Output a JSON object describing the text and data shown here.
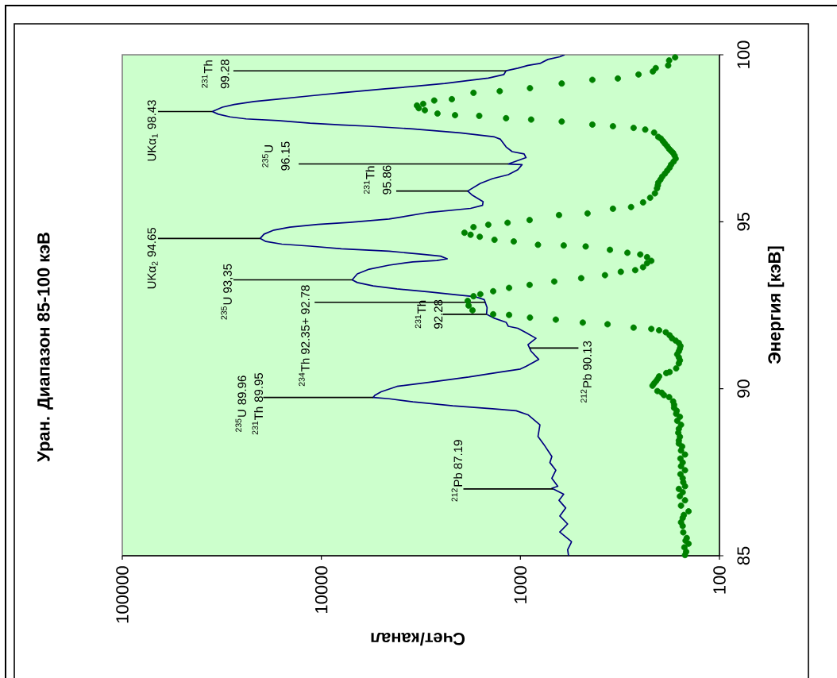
{
  "chart_data": {
    "type": "line",
    "title": "Уран. Диапазон 85-100 кэВ",
    "xlabel": "Счет/канал",
    "ylabel": "Энергия [кэВ]",
    "xlim": [
      100000,
      100
    ],
    "xticks": [
      100000,
      10000,
      1000,
      100
    ],
    "ylim": [
      85,
      100
    ],
    "yticks": [
      85,
      90,
      95,
      100
    ],
    "log": "x",
    "series": [
      {
        "color": "#000080",
        "x": [
          573,
          579,
          553,
          634,
          579,
          634,
          592,
          640,
          606,
          695,
          649,
          695,
          664,
          711,
          695,
          762,
          816,
          798,
          916,
          1050,
          1380,
          2190,
          3470,
          4570,
          5490,
          5370,
          5010,
          4170,
          2890,
          1820,
          1260,
          1000,
          937,
          809,
          883,
          916,
          835,
          937,
          1030,
          1150,
          1180,
          1350,
          1480,
          1470,
          1520,
          1700,
          2090,
          2890,
          4170,
          5490,
          6600,
          7000,
          6600,
          5750,
          4570,
          3470,
          2630,
          2330,
          2520,
          3160,
          4570,
          7930,
          11400,
          15800,
          19000,
          20300,
          19400,
          17300,
          14400,
          10400,
          7230,
          4570,
          2890,
          1780,
          1550,
          1540,
          1740,
          1840,
          1590,
          1380,
          1150,
          1030,
          981,
          1150,
          937,
          958,
          1100,
          1180,
          1260,
          1350,
          2000,
          3470,
          5750,
          7930,
          11400,
          16500,
          23900,
          28700,
          32900,
          35300,
          31400,
          27400,
          21800,
          16500,
          11400,
          7930,
          4780,
          3470,
          2400,
          1820,
          1450,
          1210,
          1180,
          1030,
          916,
          798,
          728,
          634,
          600
        ],
        "values": [
          85.0,
          85.18,
          85.42,
          85.71,
          85.95,
          86.19,
          86.43,
          86.66,
          86.84,
          87.02,
          87.08,
          87.32,
          87.56,
          87.79,
          87.97,
          88.33,
          88.57,
          88.92,
          89.22,
          89.34,
          89.4,
          89.49,
          89.61,
          89.7,
          89.74,
          89.81,
          89.91,
          90.07,
          90.19,
          90.35,
          90.5,
          90.59,
          90.67,
          90.88,
          91.12,
          91.32,
          91.51,
          91.68,
          91.81,
          91.87,
          91.99,
          92.11,
          92.23,
          92.43,
          92.67,
          92.76,
          92.81,
          92.9,
          92.99,
          93.08,
          93.18,
          93.26,
          93.44,
          93.58,
          93.7,
          93.8,
          93.84,
          93.89,
          93.97,
          94.03,
          94.12,
          94.19,
          94.27,
          94.33,
          94.41,
          94.5,
          94.63,
          94.75,
          94.84,
          94.92,
          94.98,
          95.08,
          95.28,
          95.4,
          95.49,
          95.6,
          95.79,
          95.92,
          96.15,
          96.29,
          96.41,
          96.56,
          96.71,
          96.73,
          96.92,
          97.03,
          97.1,
          97.24,
          97.47,
          97.54,
          97.66,
          97.78,
          97.86,
          97.9,
          97.95,
          98.03,
          98.08,
          98.14,
          98.22,
          98.3,
          98.43,
          98.51,
          98.6,
          98.67,
          98.77,
          98.86,
          98.98,
          99.05,
          99.14,
          99.23,
          99.3,
          99.41,
          99.52,
          99.6,
          99.68,
          99.74,
          99.86,
          99.94,
          100.0
        ]
      },
      {
        "type": "scatter",
        "color": "#008000",
        "marker": "circle",
        "x": [
          149,
          147,
          150,
          143,
          148,
          146,
          152,
          153,
          156,
          153,
          151,
          143,
          156,
          149,
          158,
          153,
          160,
          149,
          152,
          153,
          157,
          149,
          156,
          153,
          157,
          149,
          156,
          154,
          160,
          160,
          158,
          161,
          160,
          156,
          163,
          158,
          165,
          164,
          169,
          169,
          171,
          179,
          190,
          195,
          205,
          217,
          213,
          208,
          204,
          201,
          185,
          178,
          165,
          160,
          158,
          160,
          163,
          160,
          158,
          157,
          160,
          166,
          173,
          178,
          186,
          201,
          220,
          270,
          365,
          486,
          664,
          895,
          1140,
          1370,
          1740,
          1820,
          1840,
          1720,
          1590,
          1370,
          1140,
          899,
          676,
          495,
          376,
          313,
          265,
          242,
          231,
          220,
          231,
          250,
          290,
          355,
          470,
          606,
          816,
          1080,
          1350,
          1600,
          1780,
          1910,
          1720,
          1450,
          1160,
          899,
          640,
          460,
          343,
          278,
          242,
          223,
          211,
          206,
          204,
          203,
          198,
          194,
          188,
          183,
          178,
          175,
          170,
          166,
          168,
          171,
          175,
          179,
          183,
          188,
          192,
          197,
          203,
          213,
          236,
          270,
          343,
          435,
          620,
          883,
          1180,
          1610,
          2130,
          2610,
          3020,
          3240,
          3310,
          3080,
          2710,
          2210,
          1720,
          1270,
          895,
          620,
          435,
          324,
          255,
          216,
          209,
          181,
          179,
          167
        ],
        "values": [
          85.02,
          85.12,
          85.25,
          85.36,
          85.45,
          85.53,
          85.7,
          85.89,
          86.0,
          86.13,
          86.22,
          86.33,
          86.5,
          86.66,
          86.78,
          86.9,
          87.0,
          87.08,
          87.2,
          87.32,
          87.44,
          87.56,
          87.68,
          87.79,
          87.91,
          88.03,
          88.15,
          88.27,
          88.36,
          88.45,
          88.56,
          88.68,
          88.8,
          88.92,
          89.04,
          89.16,
          89.25,
          89.34,
          89.43,
          89.52,
          89.62,
          89.75,
          89.81,
          89.88,
          89.93,
          90.09,
          90.16,
          90.23,
          90.3,
          90.37,
          90.47,
          90.5,
          90.61,
          90.76,
          90.85,
          90.94,
          91.03,
          91.12,
          91.2,
          91.28,
          91.37,
          91.44,
          91.51,
          91.6,
          91.69,
          91.75,
          91.79,
          91.83,
          91.93,
          91.98,
          92.07,
          92.13,
          92.21,
          92.23,
          92.35,
          92.49,
          92.63,
          92.77,
          92.83,
          92.92,
          93.02,
          93.11,
          93.21,
          93.31,
          93.4,
          93.5,
          93.55,
          93.64,
          93.76,
          93.83,
          93.94,
          94.02,
          94.07,
          94.16,
          94.26,
          94.29,
          94.31,
          94.41,
          94.46,
          94.55,
          94.61,
          94.67,
          94.84,
          94.91,
          94.97,
          95.05,
          95.2,
          95.25,
          95.39,
          95.44,
          95.58,
          95.72,
          95.85,
          96.0,
          96.09,
          96.17,
          96.26,
          96.35,
          96.44,
          96.53,
          96.62,
          96.71,
          96.8,
          96.89,
          96.98,
          97.06,
          97.12,
          97.18,
          97.26,
          97.34,
          97.41,
          97.49,
          97.54,
          97.67,
          97.76,
          97.81,
          97.86,
          97.91,
          98.0,
          98.06,
          98.1,
          98.17,
          98.19,
          98.24,
          98.34,
          98.4,
          98.48,
          98.53,
          98.63,
          98.67,
          98.86,
          98.91,
          99.0,
          99.14,
          99.25,
          99.29,
          99.41,
          99.5,
          99.6,
          99.68,
          99.83,
          99.92
        ]
      }
    ],
    "annotations": [
      {
        "text": "$^{212}$Pb 87.19",
        "x": 685,
        "y": 87.0
      },
      {
        "text": "$^{235}$U 89.96 $^{231}$Th 89.95",
        "x": 5490,
        "y": 89.74
      },
      {
        "text": "$^{212}$Pb 90.13",
        "x": 900,
        "y": 91.22
      },
      {
        "text": "$^{234}$Th 92.35+ 92.78",
        "x": 1500,
        "y": 92.59
      },
      {
        "text": "$^{231}$Th 92.28",
        "x": 1480,
        "y": 92.23
      },
      {
        "text": "$^{235}$U 93,35",
        "x": 7000,
        "y": 93.26
      },
      {
        "text": "UKα$_{2}$ 94.65",
        "x": 20300,
        "y": 94.5
      },
      {
        "text": "$^{231}$Th 95.86",
        "x": 1840,
        "y": 95.92
      },
      {
        "text": "$^{235}$U 96.15",
        "x": 1150,
        "y": 96.73
      },
      {
        "text": "UKα$_{1}$ 98.43",
        "x": 35300,
        "y": 98.3
      },
      {
        "text": "$^{231}$Th 99.28",
        "x": 1180,
        "y": 99.52
      }
    ]
  }
}
